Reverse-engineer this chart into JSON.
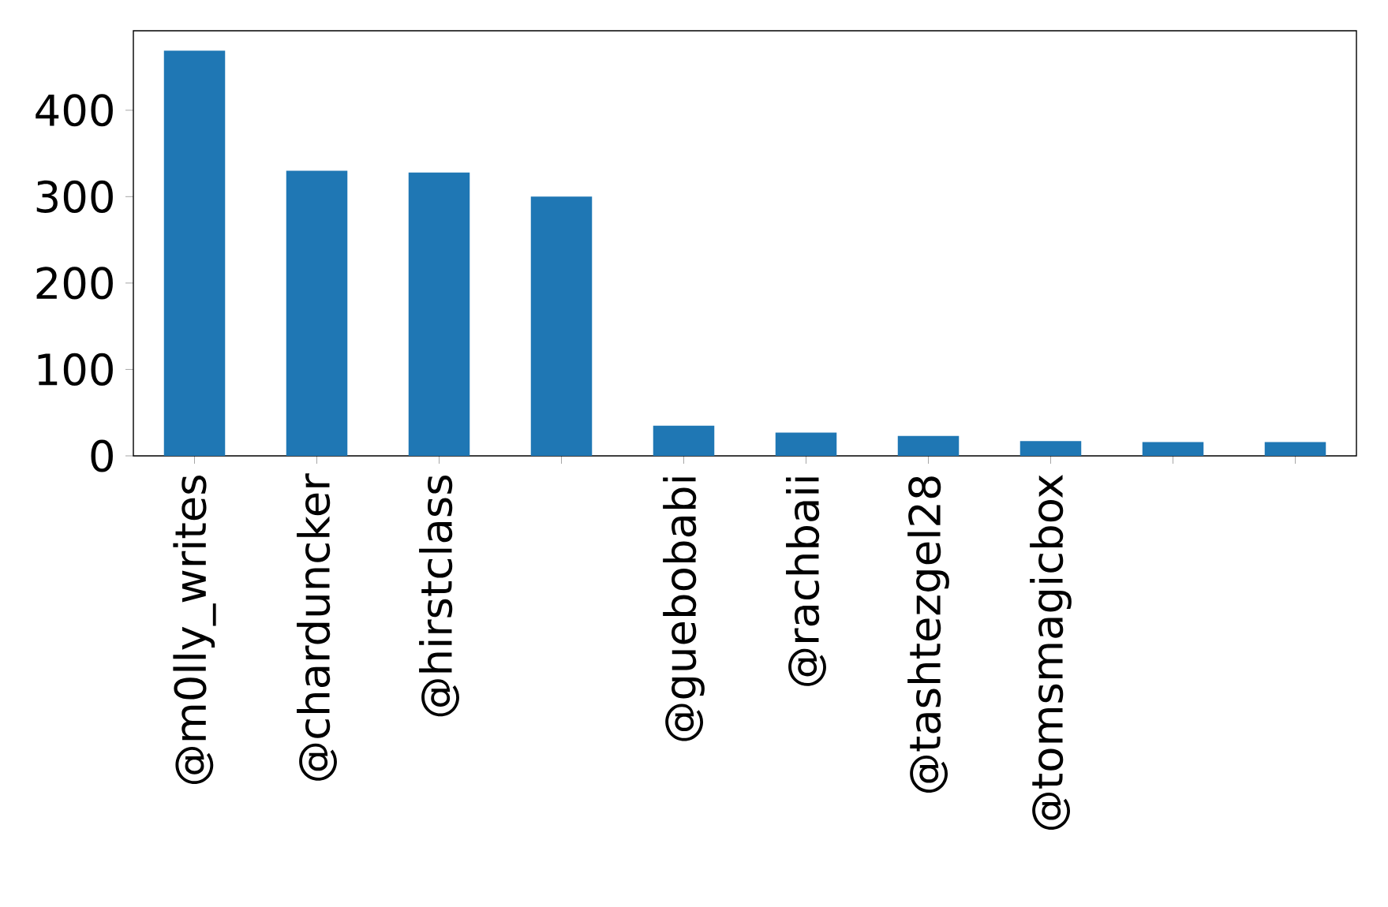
{
  "chart_data": {
    "type": "bar",
    "categories": [
      "@m0lly_writes",
      "@charduncker",
      "@hirstclass",
      null,
      "@guebobabi",
      "@rachbaii",
      "@tashtezgel28",
      "@tomsmagicbox",
      null,
      null
    ],
    "values": [
      469,
      330,
      328,
      300,
      35,
      27,
      23,
      17,
      16,
      16
    ],
    "color": "#1f77b4",
    "ylim": [
      0,
      492
    ],
    "yticks": [
      0,
      100,
      200,
      300,
      400
    ],
    "grid": false
  }
}
